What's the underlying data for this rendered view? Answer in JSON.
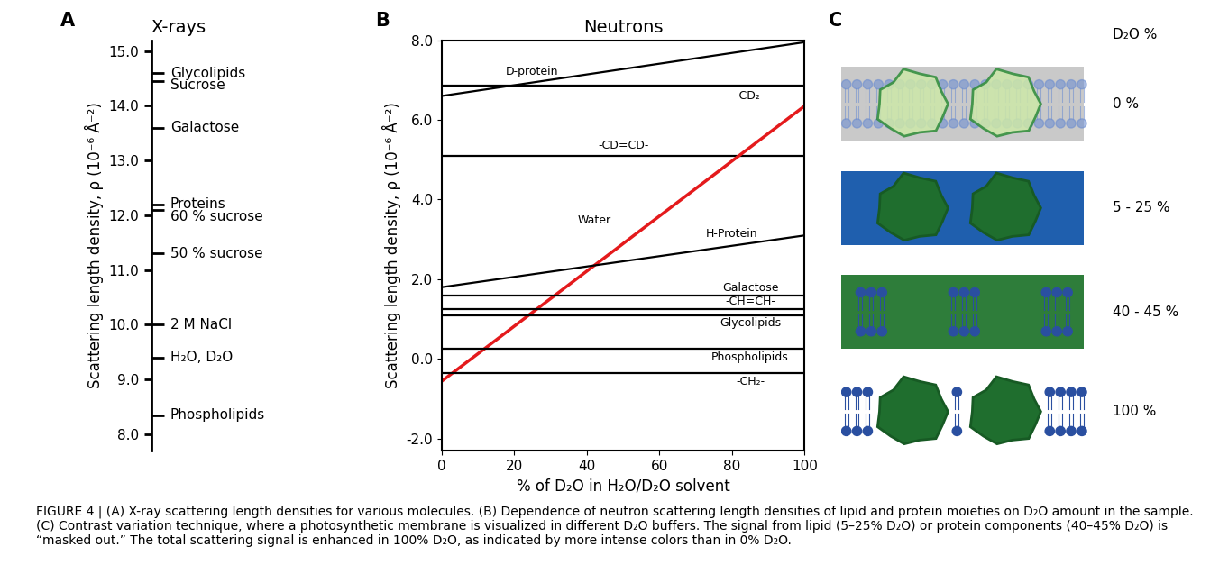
{
  "chart_data": [
    {
      "panel": "A",
      "type": "scale",
      "title": "X-rays",
      "y_label": "Scattering length density, ρ (10⁻⁶ Å⁻²)",
      "ylim": [
        7.7,
        15.2
      ],
      "yticks": [
        {
          "value": 8,
          "label": "8.0"
        },
        {
          "value": 9,
          "label": "9.0"
        },
        {
          "value": 10,
          "label": "10.0"
        },
        {
          "value": 11,
          "label": "11.0"
        },
        {
          "value": 12,
          "label": "12.0"
        },
        {
          "value": 13,
          "label": "13.0"
        },
        {
          "value": 14,
          "label": "14.0"
        },
        {
          "value": 15,
          "label": "15.0"
        }
      ],
      "categories": [
        "Glycolipids",
        "Sucrose",
        "Galactose",
        "Proteins",
        "60 % sucrose",
        "50 % sucrose",
        "2 M NaCl",
        "H₂O, D₂O",
        "Phospholipids"
      ],
      "values": [
        14.6,
        14.45,
        13.6,
        12.2,
        12.1,
        11.3,
        10.0,
        9.4,
        8.35
      ]
    },
    {
      "panel": "B",
      "type": "line",
      "title": "Neutrons",
      "x_label": "% of D₂O in H₂O/D₂O solvent",
      "y_label": "Scattering length density, ρ (10⁻⁶ Å⁻²)",
      "x": [
        0,
        100
      ],
      "xlim": [
        0,
        100
      ],
      "xticks": [
        0,
        20,
        40,
        60,
        80,
        100
      ],
      "ylim": [
        -2.3,
        8.0
      ],
      "yticks": [
        {
          "value": -2,
          "label": "-2.0"
        },
        {
          "value": 0,
          "label": "0.0"
        },
        {
          "value": 2,
          "label": "2.0"
        },
        {
          "value": 4,
          "label": "4.0"
        },
        {
          "value": 6,
          "label": "6.0"
        },
        {
          "value": 8,
          "label": "8.0"
        }
      ],
      "series": [
        {
          "name": "D-protein",
          "color": "#000000",
          "values": [
            6.6,
            7.95
          ]
        },
        {
          "name": "-CD₂-",
          "color": "#000000",
          "values": [
            6.85,
            6.85
          ]
        },
        {
          "name": "-CD=CD-",
          "color": "#000000",
          "values": [
            5.1,
            5.1
          ]
        },
        {
          "name": "Water",
          "color": "#e41a1c",
          "values": [
            -0.56,
            6.35
          ]
        },
        {
          "name": "H-Protein",
          "color": "#000000",
          "values": [
            1.8,
            3.1
          ]
        },
        {
          "name": "Galactose",
          "color": "#000000",
          "values": [
            1.6,
            1.6
          ]
        },
        {
          "name": "-CH=CH-",
          "color": "#000000",
          "values": [
            1.25,
            1.25
          ]
        },
        {
          "name": "Glycolipids",
          "color": "#000000",
          "values": [
            1.1,
            1.1
          ]
        },
        {
          "name": "Phospholipids",
          "color": "#000000",
          "values": [
            0.25,
            0.25
          ]
        },
        {
          "name": "-CH₂-",
          "color": "#000000",
          "values": [
            -0.35,
            -0.35
          ]
        }
      ]
    }
  ],
  "diagram": {
    "panel": "C",
    "header": "D₂O %",
    "rows": [
      {
        "label": "0 %",
        "color": "#c9c9c9"
      },
      {
        "label": "5 - 25 %",
        "color": "#1f5fae"
      },
      {
        "label": "40 - 45 %",
        "color": "#2e7d3a"
      },
      {
        "label": "100 %",
        "color": "#ffffff"
      }
    ]
  },
  "caption": "FIGURE 4 | (A) X-ray scattering length densities for various molecules. (B) Dependence of neutron scattering length densities of lipid and protein moieties on D₂O amount in the sample. (C) Contrast variation technique, where a photosynthetic membrane is visualized in different D₂O buffers. The signal from lipid (5–25% D₂O) or protein components (40–45% D₂O) is “masked out.” The total scattering signal is enhanced in 100% D₂O, as indicated by more intense colors than in 0% D₂O."
}
